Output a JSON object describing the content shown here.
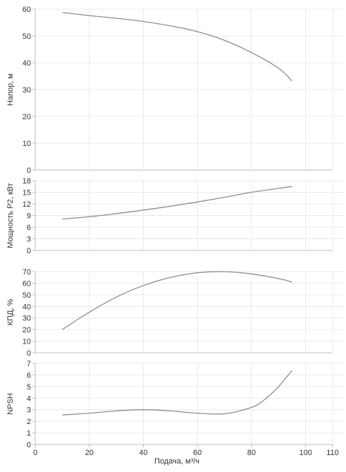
{
  "chart_data": [
    {
      "type": "line",
      "ylabel": "Напор, м",
      "ylim": [
        0,
        60
      ],
      "yticks": [
        0,
        10,
        20,
        30,
        40,
        50,
        60
      ],
      "xlim": [
        0,
        110
      ],
      "grid": true,
      "series": [
        {
          "x": [
            10,
            20,
            30,
            40,
            50,
            60,
            70,
            80,
            90,
            95
          ],
          "y": [
            58.8,
            57.6,
            56.6,
            55.4,
            53.8,
            51.6,
            48.4,
            43.8,
            38.0,
            33.2
          ]
        }
      ]
    },
    {
      "type": "line",
      "ylabel": "Мощность P2, кВт",
      "ylim": [
        0,
        18
      ],
      "yticks": [
        0,
        3,
        6,
        9,
        12,
        15,
        18
      ],
      "xlim": [
        0,
        110
      ],
      "grid": true,
      "series": [
        {
          "x": [
            10,
            20,
            30,
            40,
            50,
            60,
            70,
            80,
            90,
            95
          ],
          "y": [
            8.1,
            8.7,
            9.5,
            10.4,
            11.4,
            12.5,
            13.7,
            15.0,
            16.0,
            16.5
          ]
        }
      ]
    },
    {
      "type": "line",
      "ylabel": "КПД, %",
      "ylim": [
        0,
        70
      ],
      "yticks": [
        0,
        10,
        20,
        30,
        40,
        50,
        60,
        70
      ],
      "xlim": [
        0,
        110
      ],
      "grid": true,
      "series": [
        {
          "x": [
            10,
            20,
            30,
            40,
            50,
            60,
            70,
            80,
            90,
            95
          ],
          "y": [
            20,
            35,
            48,
            58,
            65,
            69,
            70,
            68,
            64,
            61
          ]
        }
      ]
    },
    {
      "type": "line",
      "ylabel": "NPSH",
      "xlabel": "Подача, м³/ч",
      "ylim": [
        0,
        7
      ],
      "yticks": [
        0,
        1,
        2,
        3,
        4,
        5,
        6,
        7
      ],
      "xlim": [
        0,
        110
      ],
      "xticks": [
        0,
        20,
        40,
        60,
        80,
        100,
        110
      ],
      "grid": true,
      "series": [
        {
          "x": [
            10,
            20,
            30,
            40,
            50,
            60,
            70,
            80,
            85,
            90,
            95
          ],
          "y": [
            2.55,
            2.7,
            2.9,
            3.0,
            2.9,
            2.7,
            2.65,
            3.2,
            3.9,
            5.0,
            6.4
          ]
        }
      ]
    }
  ]
}
